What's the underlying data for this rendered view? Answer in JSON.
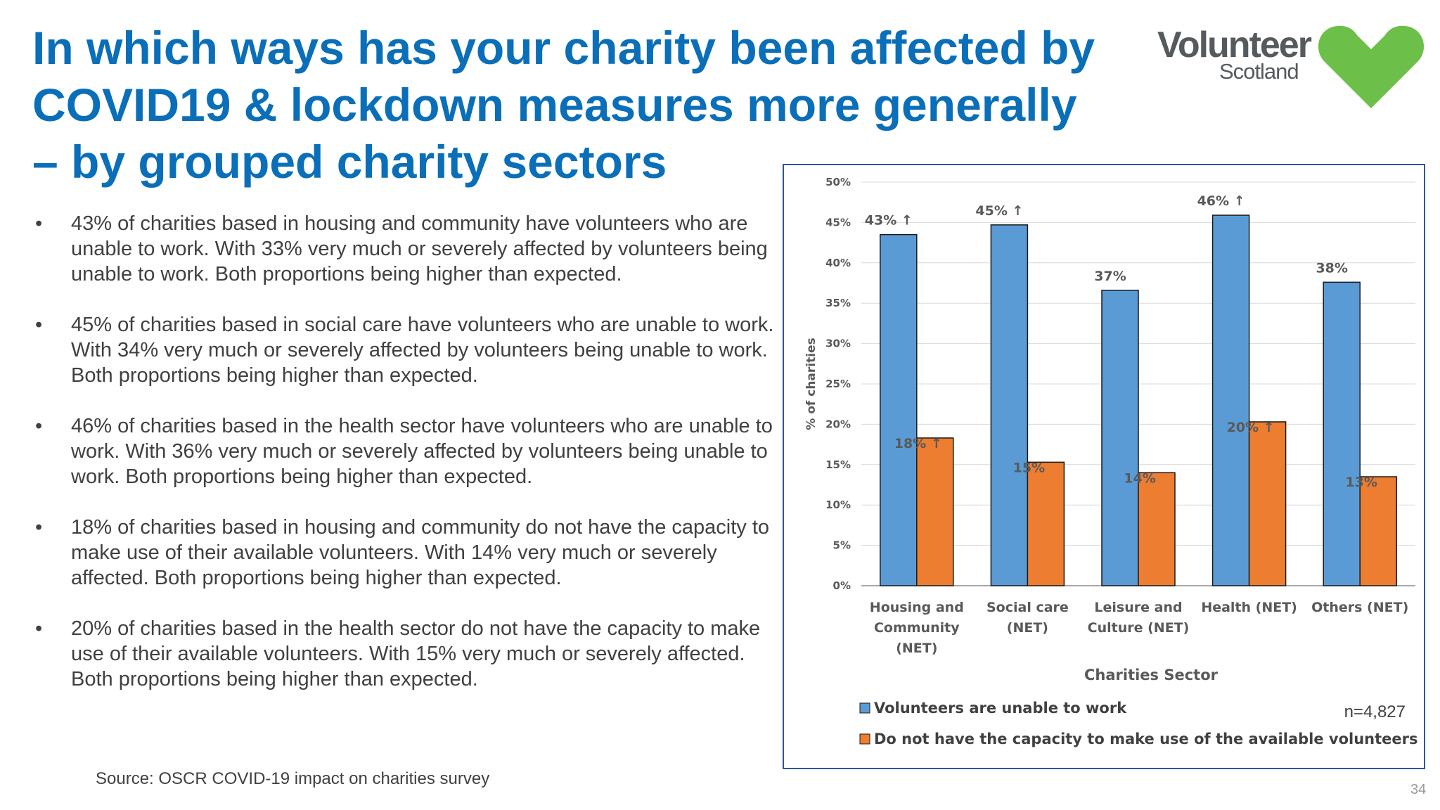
{
  "slide": {
    "title_lines": [
      "In which ways has your charity been affected by",
      "COVID19 & lockdown measures more generally",
      "– by grouped charity sectors"
    ],
    "logo": {
      "word": "Volunteer",
      "sub": "Scotland",
      "heart_color": "#6cc04a"
    },
    "bullets": [
      "43% of charities based in housing and community have volunteers who are unable to work. With 33% very much or severely affected by volunteers being unable to work. Both proportions being higher than expected.",
      "45% of charities based in social care have volunteers who are unable to work. With 34% very much or severely affected by volunteers being unable to work. Both proportions being higher than expected.",
      "46% of charities based in the health sector have volunteers who are unable to work. With 36% very much or severely affected by volunteers being unable to work. Both proportions being higher than expected.",
      "18% of charities based in housing and community do not have the capacity to make use of their available volunteers. With 14% very much or severely affected. Both proportions being higher than expected.",
      "20% of charities based in the health sector do not have the capacity to make use of their available volunteers. With 15% very much or severely affected. Both proportions being higher than expected."
    ],
    "source": "Source: OSCR COVID-19 impact on charities survey",
    "page_number": "34",
    "sample_size": "n=4,827"
  },
  "chart_data": {
    "type": "bar",
    "title": "",
    "xlabel": "Charities Sector",
    "ylabel": "% of charities",
    "ylim": [
      0,
      50
    ],
    "yticks": [
      0,
      5,
      10,
      15,
      20,
      25,
      30,
      35,
      40,
      45,
      50
    ],
    "ytick_labels": [
      "0%",
      "5%",
      "10%",
      "15%",
      "20%",
      "25%",
      "30%",
      "35%",
      "40%",
      "45%",
      "50%"
    ],
    "categories": [
      [
        "Housing and",
        "Community",
        "(NET)"
      ],
      [
        "Social care",
        "(NET)"
      ],
      [
        "Leisure and",
        "Culture (NET)"
      ],
      [
        "Health (NET)"
      ],
      [
        "Others (NET)"
      ]
    ],
    "series": [
      {
        "name": "Volunteers are unable to work",
        "color": "#5b9bd5",
        "values": [
          43.5,
          44.7,
          36.6,
          45.9,
          37.6
        ],
        "labels": [
          "43% ↑",
          "45% ↑",
          "37%",
          "46% ↑",
          "38%"
        ]
      },
      {
        "name": "Do not have the capacity to make use of the available volunteers",
        "color": "#ed7d31",
        "values": [
          18.3,
          15.3,
          14.0,
          20.3,
          13.5
        ],
        "labels": [
          "18% ↑",
          "15%",
          "14%",
          "20% ↑",
          "13%"
        ]
      }
    ],
    "gridlines": true,
    "legend_position": "bottom-left"
  }
}
